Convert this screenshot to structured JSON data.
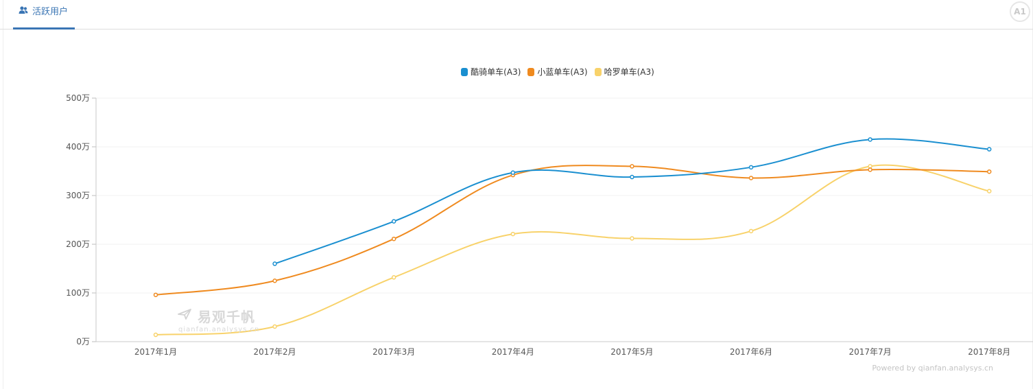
{
  "tab": {
    "label": "活跃用户",
    "icon": "users-icon"
  },
  "badge": "A1",
  "watermark": {
    "brand": "易观千帆",
    "url": "qianfan.analysys.cn"
  },
  "powered_by": "Powered by qianfan.analysys.cn",
  "chart_data": {
    "type": "line",
    "smooth": true,
    "categories": [
      "2017年1月",
      "2017年2月",
      "2017年3月",
      "2017年4月",
      "2017年5月",
      "2017年6月",
      "2017年7月",
      "2017年8月"
    ],
    "y_ticks": [
      "0万",
      "100万",
      "200万",
      "300万",
      "400万",
      "500万"
    ],
    "ylim": [
      0,
      500
    ],
    "grid": true,
    "legend_position": "top-center",
    "series": [
      {
        "name": "酷骑单车(A3)",
        "color": "#1a8fd0",
        "values": [
          null,
          160,
          247,
          347,
          338,
          358,
          415,
          395
        ]
      },
      {
        "name": "小蓝单车(A3)",
        "color": "#ef8a1f",
        "values": [
          96,
          125,
          211,
          342,
          360,
          336,
          353,
          349
        ]
      },
      {
        "name": "哈罗单车(A3)",
        "color": "#f8d26a",
        "values": [
          14,
          31,
          132,
          221,
          212,
          227,
          360,
          309
        ]
      }
    ]
  }
}
